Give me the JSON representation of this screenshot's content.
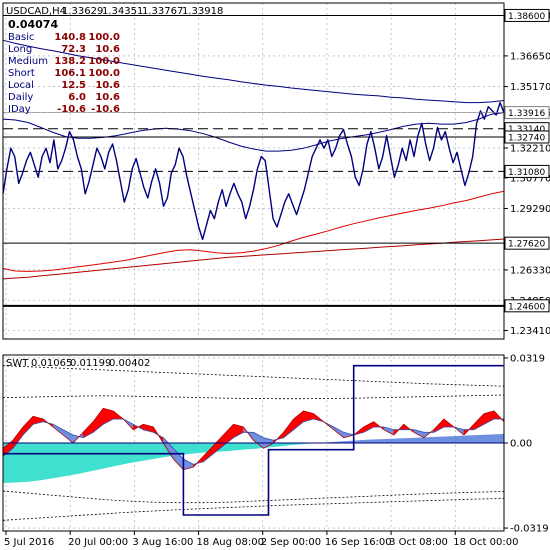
{
  "chart_data": [
    {
      "type": "line",
      "title": "USDCAD,H4",
      "ohlc": [
        "1.33629",
        "1.34351",
        "1.33767",
        "1.33918"
      ],
      "value_readout": "0.04074",
      "info_rows": [
        {
          "label": "Basic",
          "a": "140.8",
          "b": "100.0"
        },
        {
          "label": "Long",
          "a": "72.3",
          "b": "10.6"
        },
        {
          "label": "Medium",
          "a": "138.2",
          "b": "100.0"
        },
        {
          "label": "Short",
          "a": "106.1",
          "b": "100.0"
        },
        {
          "label": "Local",
          "a": "12.5",
          "b": "10.6"
        },
        {
          "label": "Daily",
          "a": "6.0",
          "b": "10.6"
        },
        {
          "label": "IDay",
          "a": "-10.6",
          "b": "-10.6"
        }
      ],
      "ylim": [
        1.23,
        1.392
      ],
      "y_ticks": [
        "1.38600",
        "1.36650",
        "1.35170",
        "1.33916",
        "1.32210",
        "1.30770",
        "1.29290",
        "1.26330",
        "1.24850",
        "1.23410"
      ],
      "boxed_levels": [
        {
          "label": "1.38600",
          "value": 1.386,
          "style": "solid"
        },
        {
          "label": "1.33140",
          "value": 1.3314,
          "style": "dashed"
        },
        {
          "label": "1.32740",
          "value": 1.3274,
          "style": "solid-thin"
        },
        {
          "label": "1.31080",
          "value": 1.3108,
          "style": "dashed"
        },
        {
          "label": "1.27620",
          "value": 1.2762,
          "style": "solid"
        },
        {
          "label": "1.24600",
          "value": 1.246,
          "style": "solid-thick"
        }
      ],
      "current_price": {
        "label": "1.33916",
        "value": 1.33916
      },
      "price": [
        1.3,
        1.312,
        1.322,
        1.318,
        1.305,
        1.31,
        1.316,
        1.32,
        1.314,
        1.308,
        1.318,
        1.322,
        1.315,
        1.326,
        1.312,
        1.316,
        1.322,
        1.33,
        1.326,
        1.318,
        1.312,
        1.3,
        1.306,
        1.314,
        1.322,
        1.318,
        1.312,
        1.32,
        1.324,
        1.316,
        1.306,
        1.296,
        1.302,
        1.312,
        1.317,
        1.31,
        1.303,
        1.298,
        1.306,
        1.312,
        1.305,
        1.294,
        1.298,
        1.31,
        1.314,
        1.322,
        1.318,
        1.308,
        1.3,
        1.292,
        1.284,
        1.278,
        1.285,
        1.292,
        1.288,
        1.296,
        1.302,
        1.294,
        1.3,
        1.305,
        1.3,
        1.296,
        1.288,
        1.294,
        1.302,
        1.312,
        1.318,
        1.316,
        1.302,
        1.288,
        1.284,
        1.29,
        1.296,
        1.3,
        1.295,
        1.29,
        1.296,
        1.302,
        1.31,
        1.318,
        1.322,
        1.326,
        1.322,
        1.326,
        1.318,
        1.322,
        1.328,
        1.331,
        1.324,
        1.318,
        1.308,
        1.304,
        1.312,
        1.324,
        1.33,
        1.322,
        1.312,
        1.318,
        1.328,
        1.318,
        1.308,
        1.314,
        1.322,
        1.316,
        1.326,
        1.318,
        1.328,
        1.334,
        1.324,
        1.316,
        1.322,
        1.332,
        1.326,
        1.33,
        1.322,
        1.315,
        1.32,
        1.312,
        1.304,
        1.31,
        1.318,
        1.334,
        1.34,
        1.336,
        1.342,
        1.34,
        1.338,
        1.344,
        1.339
      ],
      "ma_upper": [
        1.336,
        1.3356,
        1.3344,
        1.332,
        1.3296,
        1.3276,
        1.3268,
        1.3268,
        1.3272,
        1.328,
        1.3292,
        1.3304,
        1.3312,
        1.3316,
        1.3312,
        1.3304,
        1.329,
        1.3272,
        1.325,
        1.323,
        1.3216,
        1.3206,
        1.3206,
        1.321,
        1.322,
        1.3236,
        1.3254,
        1.3266,
        1.3276,
        1.3284,
        1.3296,
        1.331,
        1.3326,
        1.3336,
        1.334,
        1.3336,
        1.3336,
        1.3344,
        1.336,
        1.3384,
        1.3392
      ],
      "ma_middle": [
        1.374,
        1.3725,
        1.3712,
        1.37,
        1.369,
        1.3678,
        1.3666,
        1.3656,
        1.3646,
        1.3636,
        1.3626,
        1.3616,
        1.3606,
        1.3596,
        1.3586,
        1.3576,
        1.3566,
        1.3558,
        1.355,
        1.354,
        1.3532,
        1.3524,
        1.3518,
        1.351,
        1.3504,
        1.3498,
        1.3492,
        1.3486,
        1.348,
        1.3476,
        1.3472,
        1.3466,
        1.3462,
        1.3456,
        1.3452,
        1.3448,
        1.3444,
        1.344,
        1.344,
        1.3443,
        1.345
      ],
      "ma_red_low": [
        1.264,
        1.2628,
        1.2626,
        1.2628,
        1.2632,
        1.264,
        1.2648,
        1.2656,
        1.2664,
        1.2672,
        1.2682,
        1.2694,
        1.2706,
        1.2718,
        1.2728,
        1.273,
        1.2724,
        1.2716,
        1.2712,
        1.2716,
        1.2724,
        1.2736,
        1.2752,
        1.2772,
        1.279,
        1.2806,
        1.2822,
        1.284,
        1.2856,
        1.287,
        1.2884,
        1.2896,
        1.2908,
        1.292,
        1.293,
        1.2942,
        1.2956,
        1.2968,
        1.2984,
        1.3,
        1.3012
      ],
      "ma_red_mid": [
        1.259,
        1.2594,
        1.2598,
        1.2604,
        1.261,
        1.2616,
        1.2622,
        1.2628,
        1.2634,
        1.264,
        1.2646,
        1.2652,
        1.2658,
        1.2664,
        1.267,
        1.2676,
        1.2682,
        1.2688,
        1.2694,
        1.2698,
        1.2702,
        1.2706,
        1.271,
        1.2714,
        1.2718,
        1.2722,
        1.2726,
        1.273,
        1.2734,
        1.2738,
        1.2742,
        1.2746,
        1.275,
        1.2754,
        1.2758,
        1.2762,
        1.2766,
        1.277,
        1.2774,
        1.2778,
        1.2782
      ]
    },
    {
      "type": "area",
      "title": "SWT",
      "readout": [
        "0.01065",
        "0.01199",
        "0.00402"
      ],
      "ylim": [
        -0.033,
        0.033
      ],
      "y_ticks": [
        "0.0319",
        "0.00",
        "-0.0319"
      ],
      "x_ticks": [
        "5 Jul 2016",
        "20 Jul 00:00",
        "3 Aug 16:00",
        "18 Aug 08:00",
        "2 Sep 00:00",
        "16 Sep 16:00",
        "3 Oct 08:00",
        "18 Oct 00:00"
      ],
      "colors": {
        "navy": "#00007f",
        "red": "#ff0000",
        "blue": "#6f8fe0",
        "teal": "#40e0d0",
        "darkred": "#b00000"
      },
      "s1": [
        -0.002,
        0.001,
        0.006,
        0.01,
        0.009,
        0.006,
        0.003,
        0.0,
        0.004,
        0.008,
        0.013,
        0.012,
        0.009,
        0.005,
        0.007,
        0.006,
        0.0,
        -0.006,
        -0.01,
        -0.009,
        -0.005,
        -0.001,
        0.003,
        0.007,
        0.006,
        0.001,
        -0.002,
        0.0,
        0.004,
        0.009,
        0.012,
        0.011,
        0.008,
        0.005,
        0.002,
        0.003,
        0.006,
        0.008,
        0.005,
        0.003,
        0.007,
        0.004,
        0.002,
        0.005,
        0.009,
        0.006,
        0.003,
        0.007,
        0.011,
        0.012,
        0.008
      ],
      "s2": [
        -0.005,
        -0.002,
        0.003,
        0.007,
        0.008,
        0.007,
        0.005,
        0.003,
        0.002,
        0.004,
        0.007,
        0.009,
        0.009,
        0.007,
        0.005,
        0.004,
        0.002,
        -0.002,
        -0.006,
        -0.008,
        -0.007,
        -0.004,
        -0.001,
        0.002,
        0.004,
        0.004,
        0.002,
        0.001,
        0.002,
        0.005,
        0.008,
        0.009,
        0.008,
        0.006,
        0.004,
        0.003,
        0.004,
        0.006,
        0.006,
        0.005,
        0.005,
        0.005,
        0.004,
        0.004,
        0.006,
        0.006,
        0.005,
        0.005,
        0.007,
        0.009,
        0.009
      ],
      "base_area": [
        -0.015,
        -0.0148,
        -0.0145,
        -0.014,
        -0.0132,
        -0.0124,
        -0.0116,
        -0.0106,
        -0.0096,
        -0.0086,
        -0.0076,
        -0.0068,
        -0.006,
        -0.0052,
        -0.0046,
        -0.004,
        -0.0036,
        -0.0033,
        -0.003,
        -0.0026,
        -0.0022,
        -0.0018,
        -0.0013,
        -0.0008,
        -0.0004,
        0.0,
        0.0003,
        0.0006,
        0.0009,
        0.0012,
        0.0014,
        0.0016,
        0.0018,
        0.002,
        0.0022,
        0.0024,
        0.0026,
        0.0028,
        0.003,
        0.0032,
        0.0034
      ],
      "step_x": [
        0,
        0.36,
        0.36,
        0.53,
        0.53,
        0.7,
        0.7,
        1.0
      ],
      "step_y": [
        -0.004,
        -0.004,
        -0.027,
        -0.027,
        -0.0025,
        -0.0025,
        0.029,
        0.029
      ],
      "band_upper": [
        0.029,
        0.0286,
        0.0282,
        0.0278,
        0.0274,
        0.027,
        0.0266,
        0.0262,
        0.0258,
        0.0254,
        0.025,
        0.0246,
        0.0242,
        0.0238,
        0.0234,
        0.023,
        0.0226,
        0.0222,
        0.0219,
        0.0216,
        0.0213
      ],
      "band_upper2": [
        0.017,
        0.0172,
        0.0174,
        0.0176,
        0.0177,
        0.0176,
        0.0174,
        0.0172,
        0.017,
        0.0168,
        0.0167,
        0.0166,
        0.0166,
        0.0167,
        0.0168,
        0.017,
        0.0172,
        0.0174,
        0.0176,
        0.0178,
        0.018
      ],
      "band_lower": [
        -0.018,
        -0.0188,
        -0.0196,
        -0.0204,
        -0.0212,
        -0.0218,
        -0.0222,
        -0.0224,
        -0.0224,
        -0.0222,
        -0.0218,
        -0.0214,
        -0.021,
        -0.0206,
        -0.0202,
        -0.0198,
        -0.0194,
        -0.019,
        -0.0187,
        -0.0184,
        -0.0182
      ],
      "band_lower2": [
        -0.029,
        -0.0284,
        -0.0278,
        -0.0272,
        -0.0266,
        -0.026,
        -0.0255,
        -0.025,
        -0.0246,
        -0.0242,
        -0.0238,
        -0.0234,
        -0.0231,
        -0.0228,
        -0.0225,
        -0.0222,
        -0.0219,
        -0.0216,
        -0.0213,
        -0.021,
        -0.0208
      ]
    }
  ]
}
